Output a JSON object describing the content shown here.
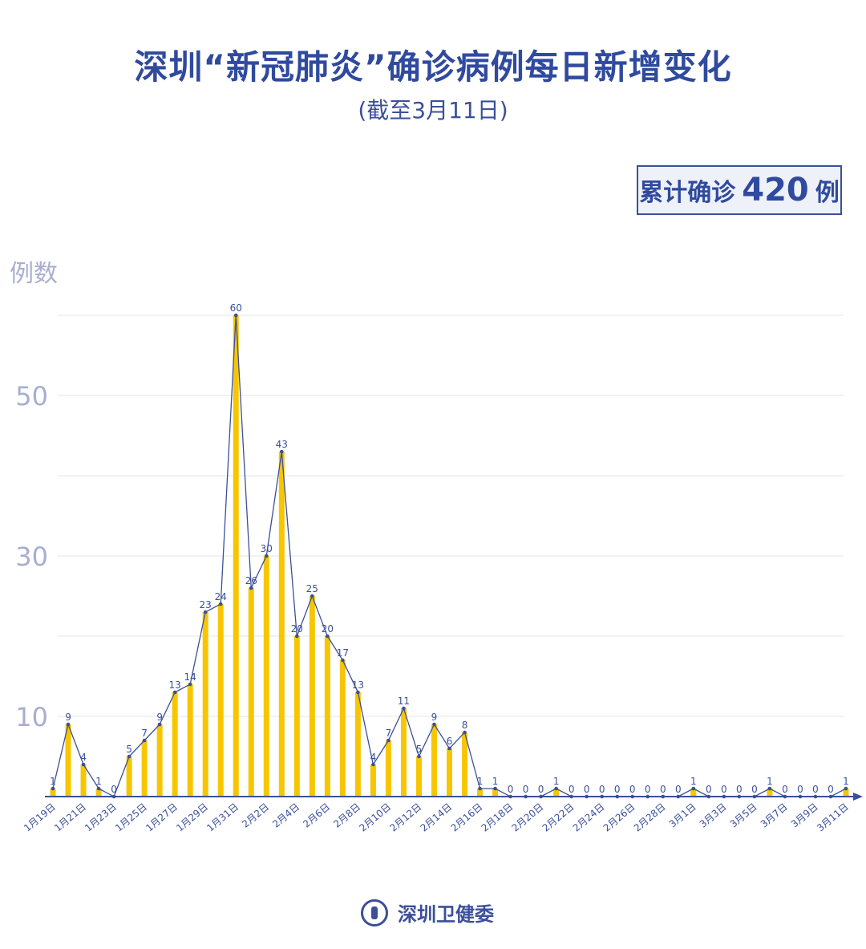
{
  "title": "深圳“新冠肺炎”确诊病例每日新增变化",
  "subtitle": "(截至3月11日)",
  "total": {
    "prefix": "累计确诊",
    "value": "420",
    "suffix": "例"
  },
  "footer": {
    "org": "深圳卫健委"
  },
  "colors": {
    "bar": "#f7c600",
    "line": "#3b4f9a",
    "title": "#2f4a9e",
    "axis_tick": "#a8aed0"
  },
  "chart_data": {
    "type": "bar",
    "ylabel": "例数",
    "ylim": [
      0,
      60
    ],
    "yticks": [
      10,
      30,
      50
    ],
    "grid": true,
    "categories": [
      "1月19日",
      "1月20日",
      "1月21日",
      "1月22日",
      "1月23日",
      "1月24日",
      "1月25日",
      "1月26日",
      "1月27日",
      "1月28日",
      "1月29日",
      "1月30日",
      "1月31日",
      "2月1日",
      "2月2日",
      "2月3日",
      "2月4日",
      "2月5日",
      "2月6日",
      "2月7日",
      "2月8日",
      "2月9日",
      "2月10日",
      "2月11日",
      "2月12日",
      "2月13日",
      "2月14日",
      "2月15日",
      "2月16日",
      "2月17日",
      "2月18日",
      "2月19日",
      "2月20日",
      "2月21日",
      "2月22日",
      "2月23日",
      "2月24日",
      "2月25日",
      "2月26日",
      "2月27日",
      "2月28日",
      "2月29日",
      "3月1日",
      "3月2日",
      "3月3日",
      "3月4日",
      "3月5日",
      "3月6日",
      "3月7日",
      "3月8日",
      "3月9日",
      "3月10日",
      "3月11日"
    ],
    "values": [
      1,
      9,
      4,
      1,
      0,
      5,
      7,
      9,
      13,
      14,
      23,
      24,
      60,
      26,
      30,
      43,
      20,
      25,
      20,
      17,
      13,
      4,
      7,
      11,
      5,
      9,
      6,
      8,
      1,
      1,
      0,
      0,
      0,
      1,
      0,
      0,
      0,
      0,
      0,
      0,
      0,
      0,
      1,
      0,
      0,
      0,
      0,
      1,
      0,
      0,
      0,
      0,
      1
    ],
    "label_every": 2,
    "overlay_line": true
  }
}
